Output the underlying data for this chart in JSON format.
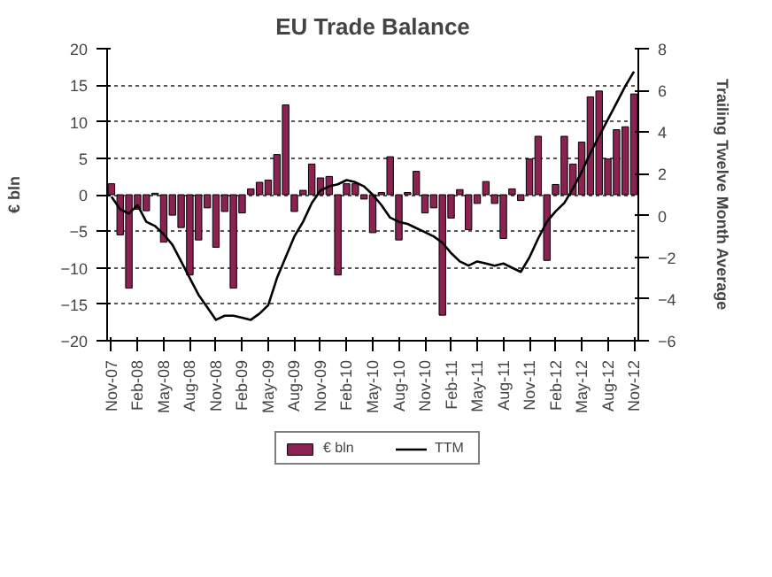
{
  "chart_data": {
    "type": "bar",
    "title": "EU Trade Balance",
    "ylabel": "€ bln",
    "y2label": "Trailing Twelve Month Average",
    "categories": [
      "Nov-07",
      null,
      null,
      "Feb-08",
      null,
      null,
      "May-08",
      null,
      null,
      "Aug-08",
      null,
      null,
      "Nov-08",
      null,
      null,
      "Feb-09",
      null,
      null,
      "May-09",
      null,
      null,
      "Aug-09",
      null,
      null,
      "Nov-09",
      null,
      null,
      "Feb-10",
      null,
      null,
      "May-10",
      null,
      null,
      "Aug-10",
      null,
      null,
      "Nov-10",
      null,
      null,
      "Feb-11",
      null,
      null,
      "May-11",
      null,
      null,
      "Aug-11",
      null,
      null,
      "Nov-11",
      null,
      null,
      "Feb-12",
      null,
      null,
      "May-12",
      null,
      null,
      "Aug-12",
      null,
      null,
      "Nov-12"
    ],
    "series": [
      {
        "name": "€ bln",
        "color": "#8b2252",
        "values": [
          1.5,
          -5.5,
          -12.8,
          -2,
          -2.2,
          0.2,
          -6.5,
          -2.8,
          -4.5,
          -11,
          -6.2,
          -1.8,
          -7.2,
          -2.3,
          -12.8,
          -2.5,
          0.8,
          1.7,
          2,
          5.5,
          12.3,
          -2.3,
          0.6,
          4.2,
          2.3,
          2.5,
          -11,
          1.5,
          1.5,
          -0.6,
          -5.2,
          0.3,
          5.2,
          -6.2,
          0.3,
          3.2,
          -2.5,
          -1.8,
          -16.5,
          -3.2,
          0.7,
          -4.8,
          -1.2,
          1.8,
          -1.2,
          -6,
          0.8,
          -0.8,
          4.9,
          8,
          -9,
          1.4,
          8,
          4.2,
          7.2,
          13.4,
          14.2,
          4.9,
          8.9,
          9.3,
          13.8
        ]
      },
      {
        "name": "TTM",
        "type": "line",
        "axis": "y2",
        "color": "#000000",
        "values": [
          0.9,
          0.3,
          0.1,
          0.5,
          -0.3,
          -0.5,
          -0.9,
          -1.4,
          -2.2,
          -3.0,
          -3.8,
          -4.4,
          -5.0,
          -4.8,
          -4.8,
          -4.9,
          -5.0,
          -4.7,
          -4.3,
          -3.0,
          -2.0,
          -1.0,
          -0.3,
          0.6,
          1.2,
          1.4,
          1.5,
          1.7,
          1.6,
          1.4,
          1.0,
          0.5,
          -0.1,
          -0.3,
          -0.4,
          -0.6,
          -0.8,
          -1.0,
          -1.3,
          -1.8,
          -2.2,
          -2.4,
          -2.2,
          -2.3,
          -2.4,
          -2.3,
          -2.5,
          -2.7,
          -2.0,
          -1.1,
          -0.3,
          0.2,
          0.6,
          1.3,
          2.1,
          3.0,
          3.8,
          4.6,
          5.4,
          6.2,
          6.9
        ]
      }
    ],
    "ylim": [
      -20,
      20
    ],
    "yticks": [
      -20,
      -15,
      -10,
      -5,
      0,
      5,
      10,
      15,
      20
    ],
    "y2lim": [
      -6,
      8
    ],
    "y2ticks": [
      -6,
      -4,
      -2,
      0,
      2,
      4,
      6,
      8
    ],
    "grid": "y",
    "legend": "bottom",
    "line_style": "solid",
    "marker": "none"
  }
}
